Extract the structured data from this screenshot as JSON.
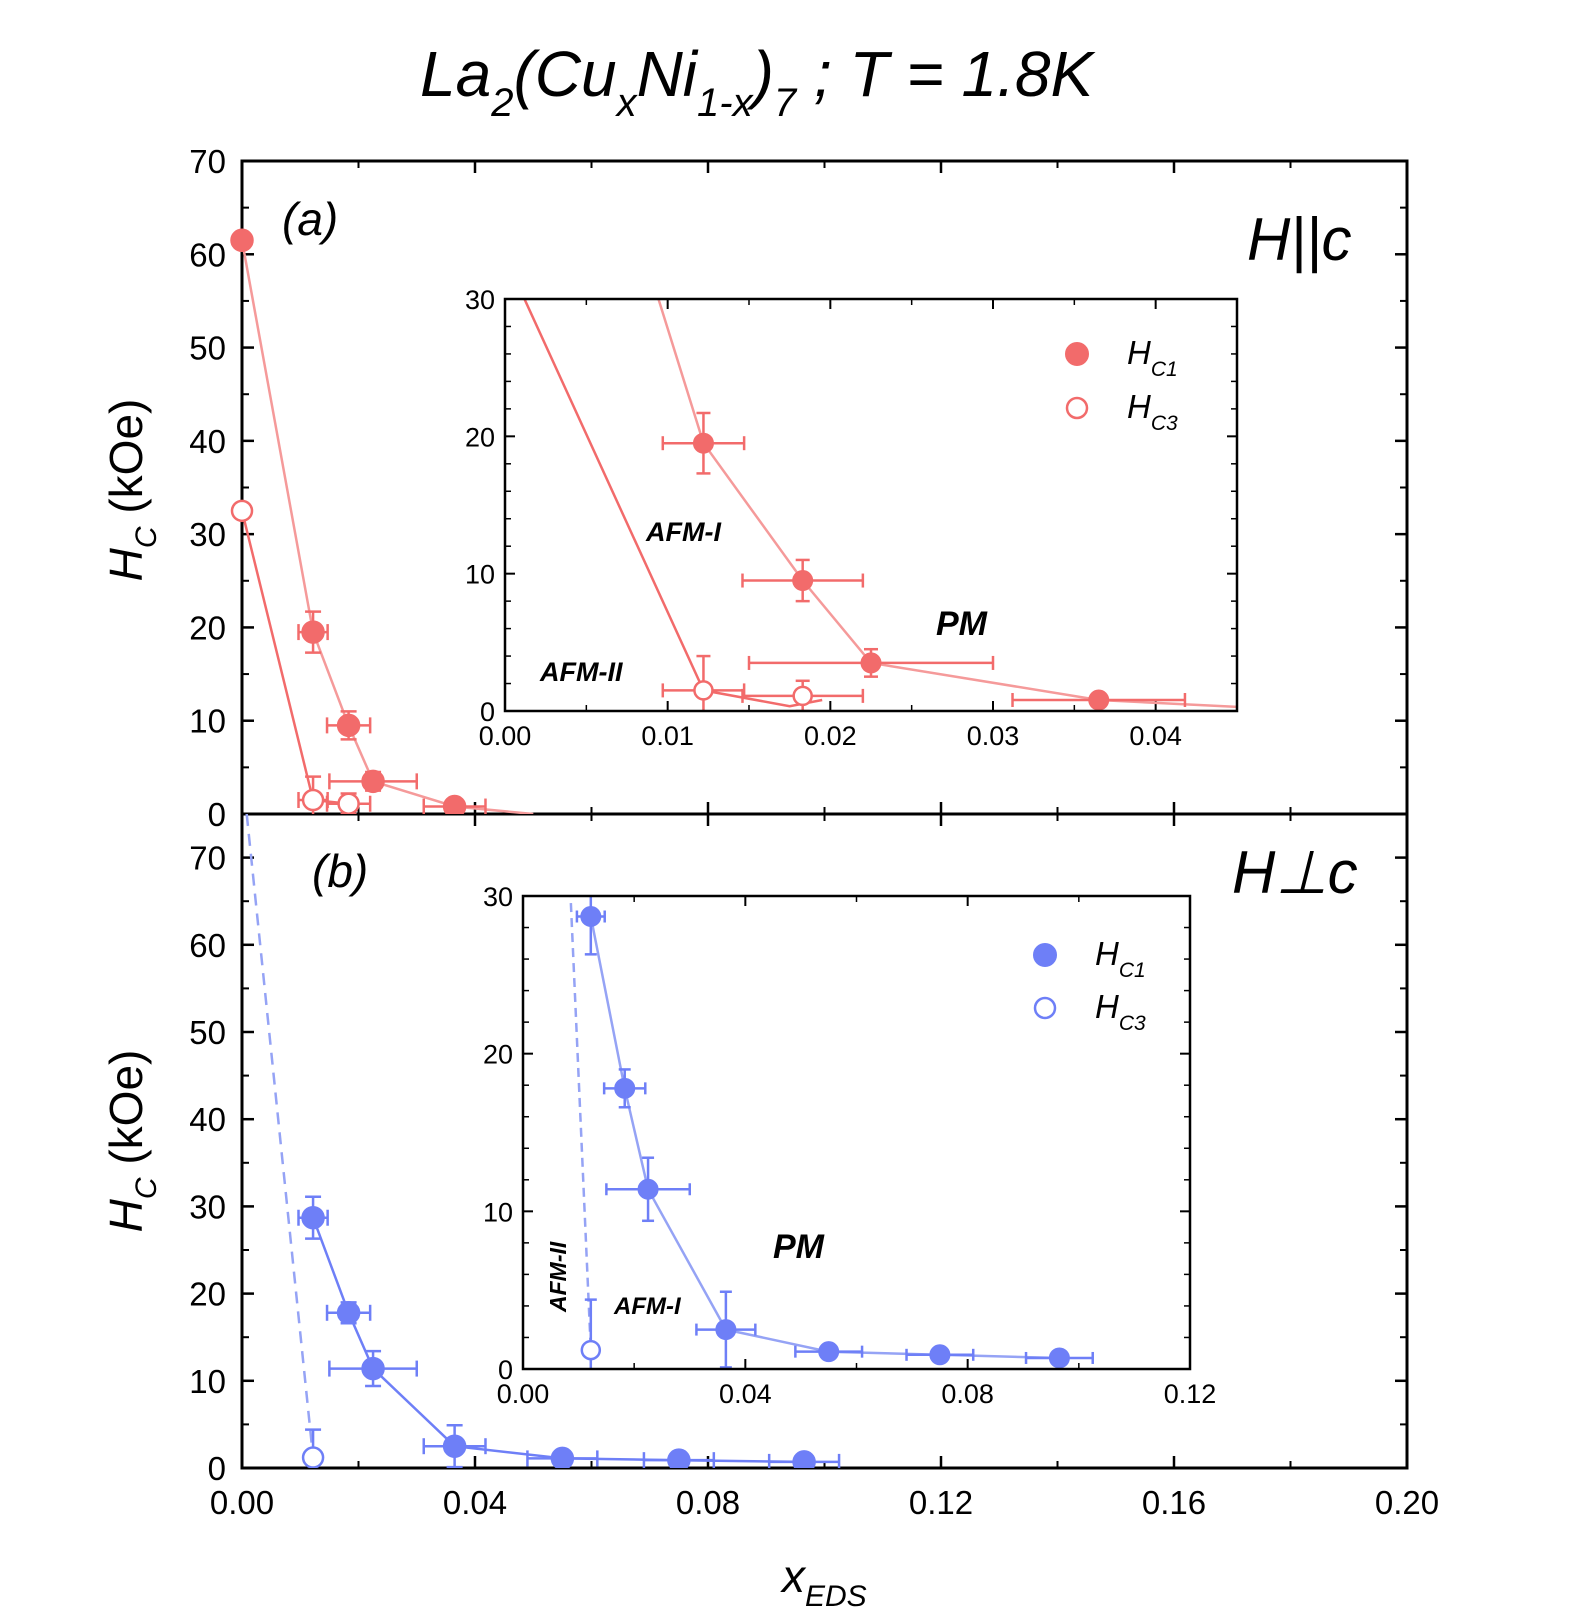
{
  "title": {
    "base": "La",
    "sub1": "2",
    "mid1": "(Cu",
    "sub2": "x",
    "mid2": "Ni",
    "sub3": "1-x",
    "mid3": ")",
    "sub4": "7",
    "tail": " ; T = 1.8K"
  },
  "x_axis": {
    "label_main": "x",
    "label_sub": "EDS",
    "ticks": [
      "0.00",
      "0.04",
      "0.08",
      "0.12",
      "0.16",
      "0.20"
    ]
  },
  "y_axis": {
    "label_main": "H",
    "label_sub": "C",
    "label_unit": " (kOe)"
  },
  "legend": {
    "hc1_main": "H",
    "hc1_sub": "C1",
    "hc3_main": "H",
    "hc3_sub": "C3"
  },
  "colors": {
    "red": "#f26b6b",
    "red_light": "#f59a9a",
    "blue": "#6e7ff7",
    "blue_light": "#95a3f5"
  },
  "chart_data": [
    {
      "id": "panel_a",
      "type": "scatter",
      "panel_label": "(a)",
      "field_label": "H||c",
      "xlim": [
        0,
        0.2
      ],
      "ylim": [
        0,
        70
      ],
      "yticks": [
        "0",
        "10",
        "20",
        "30",
        "40",
        "50",
        "60",
        "70"
      ],
      "series": [
        {
          "name": "HC1",
          "filled": true,
          "connected": true,
          "color": "red_light",
          "points": [
            {
              "x": 0.0,
              "y": 61.5,
              "xerr": 0,
              "yerr": 0
            },
            {
              "x": 0.0122,
              "y": 19.5,
              "xerr": 0.0025,
              "yerr": 2.2
            },
            {
              "x": 0.0183,
              "y": 9.5,
              "xerr": 0.0037,
              "yerr": 1.5
            },
            {
              "x": 0.0225,
              "y": 3.5,
              "xerr": 0.0075,
              "yerr": 1.0
            },
            {
              "x": 0.0365,
              "y": 0.8,
              "xerr": 0.0053,
              "yerr": 0
            }
          ],
          "line_extend": [
            {
              "x": 0.05,
              "y": 0.0
            }
          ]
        },
        {
          "name": "HC3",
          "filled": false,
          "connected": true,
          "color": "red",
          "points": [
            {
              "x": 0.0,
              "y": 32.5,
              "xerr": 0,
              "yerr": 0
            },
            {
              "x": 0.0122,
              "y": 1.5,
              "xerr": 0.0025,
              "yerr": 2.5
            },
            {
              "x": 0.0183,
              "y": 1.1,
              "xerr": 0.0037,
              "yerr": 1.1
            }
          ],
          "line_extend": [
            {
              "x": 0.0195,
              "y": 0.8
            }
          ]
        }
      ],
      "inset": {
        "xlim": [
          0,
          0.045
        ],
        "ylim": [
          0,
          30
        ],
        "xticks": [
          "0.00",
          "0.01",
          "0.02",
          "0.03",
          "0.04"
        ],
        "yticks": [
          "0",
          "10",
          "20",
          "30"
        ],
        "region_labels": [
          "AFM-I",
          "AFM-II",
          "PM"
        ]
      }
    },
    {
      "id": "panel_b",
      "type": "scatter",
      "panel_label": "(b)",
      "field_label": "H⊥c",
      "xlim": [
        0,
        0.2
      ],
      "ylim": [
        0,
        75
      ],
      "yticks": [
        "0",
        "10",
        "20",
        "30",
        "40",
        "50",
        "60",
        "70"
      ],
      "series": [
        {
          "name": "HC1",
          "filled": true,
          "connected": true,
          "color": "blue",
          "points": [
            {
              "x": 0.0122,
              "y": 28.7,
              "xerr": 0.0025,
              "yerr": 2.4
            },
            {
              "x": 0.0183,
              "y": 17.8,
              "xerr": 0.0037,
              "yerr": 1.2
            },
            {
              "x": 0.0225,
              "y": 11.4,
              "xerr": 0.0075,
              "yerr": 2.0
            },
            {
              "x": 0.0365,
              "y": 2.5,
              "xerr": 0.0053,
              "yerr": 2.4
            },
            {
              "x": 0.055,
              "y": 1.1,
              "xerr": 0.006,
              "yerr": 0
            },
            {
              "x": 0.075,
              "y": 0.9,
              "xerr": 0.006,
              "yerr": 0
            },
            {
              "x": 0.0965,
              "y": 0.7,
              "xerr": 0.006,
              "yerr": 0
            }
          ]
        },
        {
          "name": "HC3",
          "filled": false,
          "connected": false,
          "dashed_boundary": true,
          "color": "blue",
          "points": [
            {
              "x": 0.0122,
              "y": 1.2,
              "xerr": 0.001,
              "yerr": 3.2
            }
          ],
          "line": [
            {
              "x": 0.0008,
              "y": 75
            },
            {
              "x": 0.0122,
              "y": 1.2
            }
          ]
        }
      ],
      "inset": {
        "xlim": [
          0,
          0.12
        ],
        "ylim": [
          0,
          30
        ],
        "xticks": [
          "0.00",
          "0.04",
          "0.08",
          "0.12"
        ],
        "yticks": [
          "0",
          "10",
          "20",
          "30"
        ],
        "region_labels": [
          "AFM-II",
          "AFM-I",
          "PM"
        ]
      }
    }
  ]
}
